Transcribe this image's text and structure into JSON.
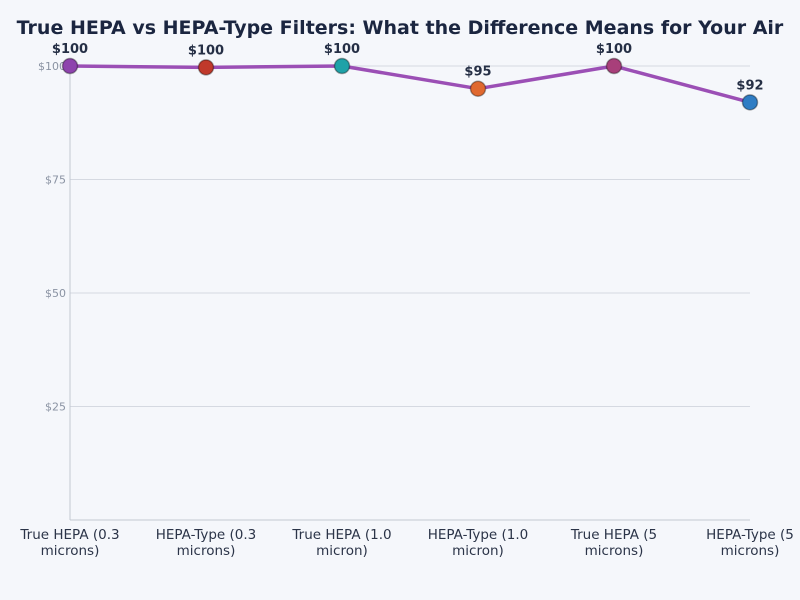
{
  "chart_data": {
    "type": "line",
    "title": "True HEPA vs HEPA-Type Filters: What the Difference Means for Your Air",
    "xlabel": "",
    "ylabel": "",
    "categories": [
      "True HEPA (0.3 microns)",
      "HEPA-Type (0.3 microns)",
      "True HEPA (1.0 micron)",
      "HEPA-Type (1.0 micron)",
      "True HEPA (5 microns)",
      "HEPA-Type (5 microns)"
    ],
    "category_lines": [
      [
        "True HEPA (0.3",
        "microns)"
      ],
      [
        "HEPA-Type (0.3",
        "microns)"
      ],
      [
        "True HEPA (1.0",
        "micron)"
      ],
      [
        "HEPA-Type (1.0",
        "micron)"
      ],
      [
        "True HEPA (5",
        "microns)"
      ],
      [
        "HEPA-Type (5",
        "microns)"
      ]
    ],
    "values": [
      100,
      99.7,
      100,
      95,
      100,
      92
    ],
    "data_labels": [
      "$100",
      "$100",
      "$100",
      "$95",
      "$100",
      "$92"
    ],
    "point_colors": [
      "#8e44ad",
      "#c0392b",
      "#1fa2a8",
      "#e0692f",
      "#a83f7a",
      "#2f7dc4"
    ],
    "line_color": "#9b4fb5",
    "yticks": [
      25,
      50,
      75,
      100
    ],
    "ytick_labels": [
      "$25",
      "$50",
      "$75",
      "$100"
    ],
    "ylim": [
      0,
      100
    ],
    "grid": true
  }
}
